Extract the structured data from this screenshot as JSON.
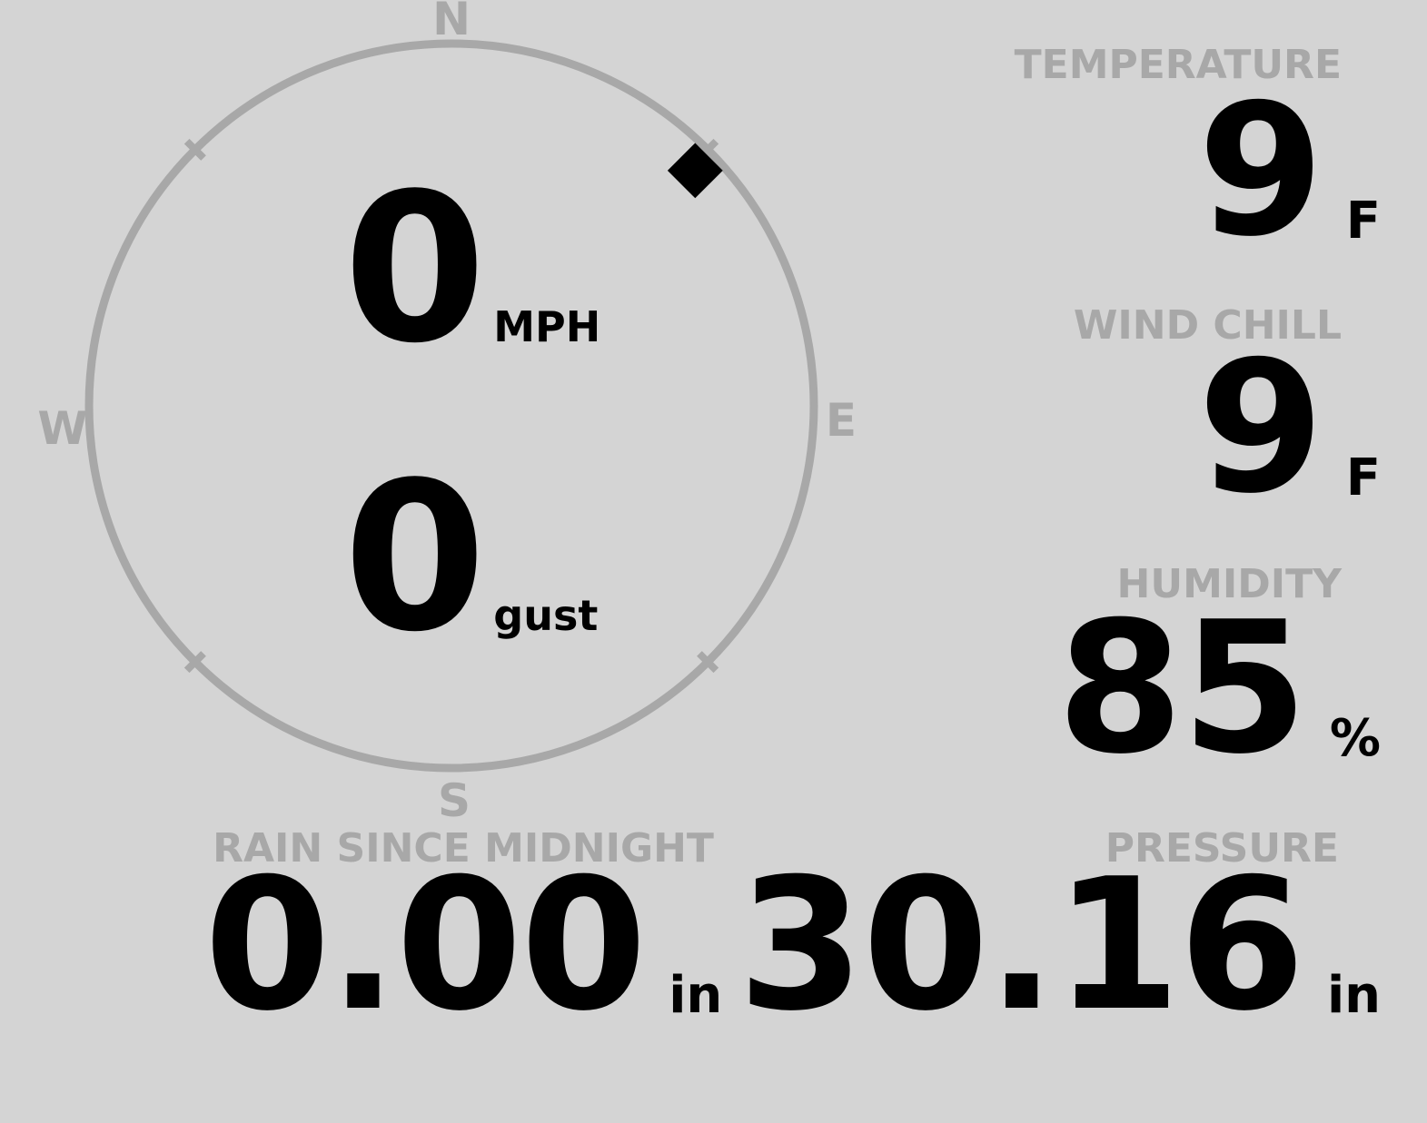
{
  "colors": {
    "background": "#d4d4d4",
    "muted": "#a8a8a8",
    "ink": "#000000"
  },
  "compass": {
    "north": "N",
    "east": "E",
    "south": "S",
    "west": "W",
    "wind_direction_deg": 46,
    "tick_angles_deg": [
      45,
      135,
      225,
      315
    ]
  },
  "wind": {
    "speed_value": "0",
    "speed_unit": "MPH",
    "gust_value": "0",
    "gust_unit": "gust"
  },
  "metrics": [
    {
      "label": "TEMPERATURE",
      "value": "9",
      "unit": "F"
    },
    {
      "label": "WIND CHILL",
      "value": "9",
      "unit": "F"
    },
    {
      "label": "HUMIDITY",
      "value": "85",
      "unit": "%"
    }
  ],
  "footer": [
    {
      "label": "RAIN SINCE MIDNIGHT",
      "value": "0.00",
      "unit": "in"
    },
    {
      "label": "PRESSURE",
      "value": "30.16",
      "unit": "in"
    }
  ]
}
